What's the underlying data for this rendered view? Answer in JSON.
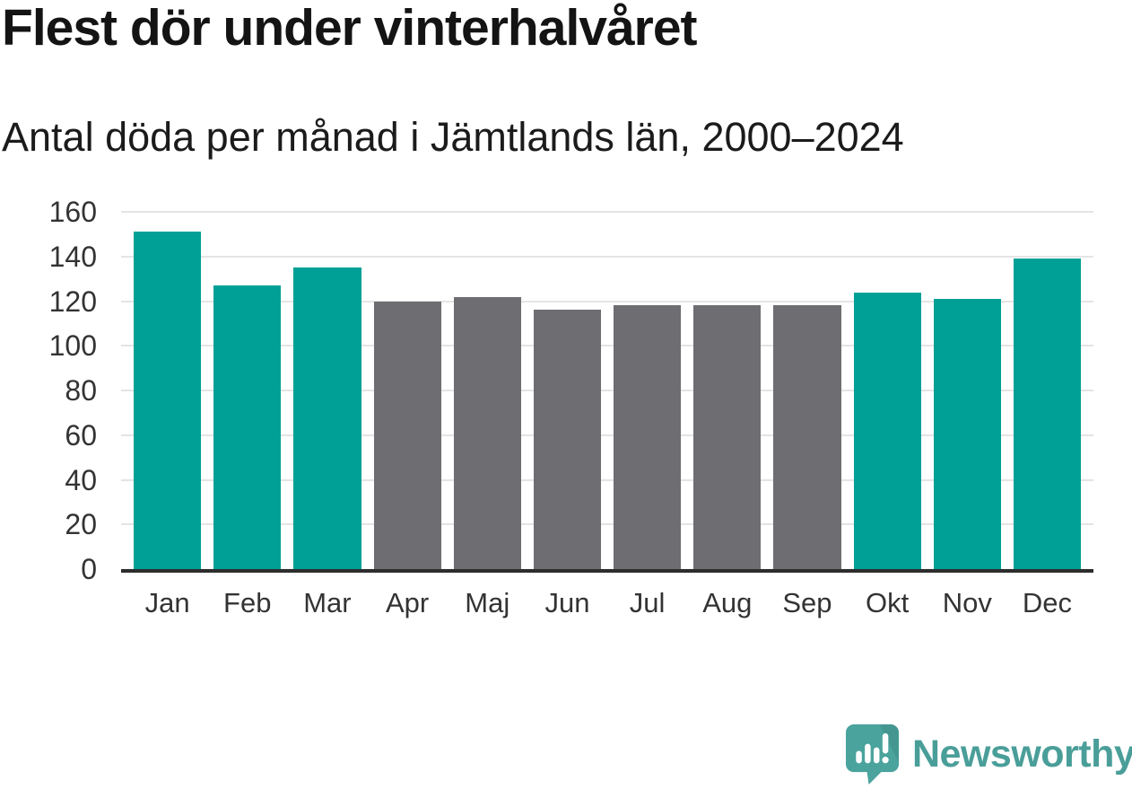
{
  "header": {
    "title": "Flest dör under vinterhalvåret",
    "subtitle": "Antal döda per månad i Jämtlands län, 2000–2024"
  },
  "chart_data": {
    "type": "bar",
    "title": "Flest dör under vinterhalvåret",
    "subtitle": "Antal döda per månad i Jämtlands län, 2000–2024",
    "categories": [
      "Jan",
      "Feb",
      "Mar",
      "Apr",
      "Maj",
      "Jun",
      "Jul",
      "Aug",
      "Sep",
      "Okt",
      "Nov",
      "Dec"
    ],
    "values": [
      151,
      127,
      135,
      120,
      122,
      116,
      118,
      118,
      118,
      124,
      121,
      139
    ],
    "bar_colors": [
      "#00a096",
      "#00a096",
      "#00a096",
      "#6e6e72",
      "#6e6e72",
      "#6e6e72",
      "#6e6e72",
      "#6e6e72",
      "#6e6e72",
      "#00a096",
      "#00a096",
      "#00a096"
    ],
    "xlabel": "",
    "ylabel": "",
    "ylim": [
      0,
      160
    ],
    "yticks": [
      0,
      20,
      40,
      60,
      80,
      100,
      120,
      140,
      160
    ],
    "grid": true,
    "legend": false,
    "colors": {
      "highlight": "#00a096",
      "neutral": "#6e6e72",
      "gridline": "#e4e4e4",
      "axis": "#2d2d2d",
      "tick_text": "#333333"
    }
  },
  "footer": {
    "brand": "Newsworthy",
    "logo_icon": "newsworthy-speech-bubble-bars-icon",
    "brand_color": "#4a9e99",
    "icon_color": "#4aa39d",
    "icon_glyph_color": "#ffffff"
  }
}
